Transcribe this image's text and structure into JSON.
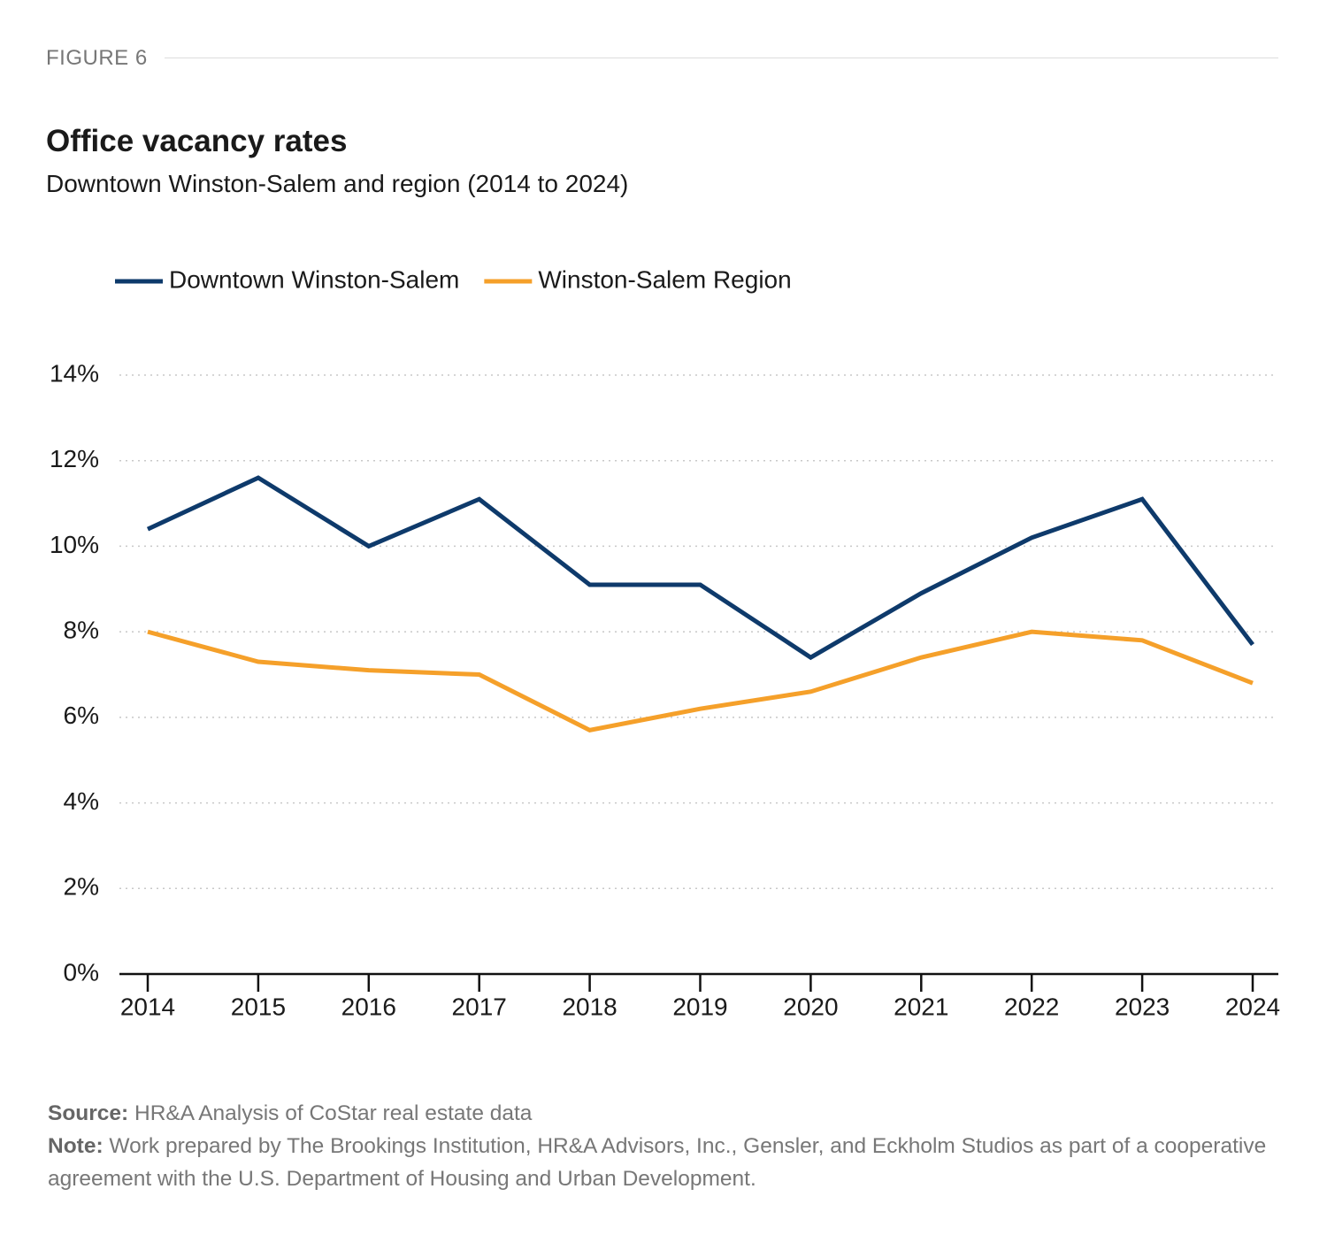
{
  "figure_label": "FIGURE 6",
  "chart_data": {
    "type": "line",
    "title": "Office vacancy rates",
    "subtitle": "Downtown Winston-Salem and region (2014 to 2024)",
    "categories": [
      "2014",
      "2015",
      "2016",
      "2017",
      "2018",
      "2019",
      "2020",
      "2021",
      "2022",
      "2023",
      "2024"
    ],
    "series": [
      {
        "name": "Downtown Winston-Salem",
        "color": "#0e3a6b",
        "values": [
          10.4,
          11.6,
          10.0,
          11.1,
          9.1,
          9.1,
          7.4,
          8.9,
          10.2,
          11.1,
          7.7
        ]
      },
      {
        "name": "Winston-Salem Region",
        "color": "#f5a02a",
        "values": [
          8.0,
          7.3,
          7.1,
          7.0,
          5.7,
          6.2,
          6.6,
          7.4,
          8.0,
          7.8,
          6.8
        ]
      }
    ],
    "ylim": [
      0,
      14
    ],
    "yticks": [
      {
        "value": 0,
        "label": "0%"
      },
      {
        "value": 2,
        "label": "2%"
      },
      {
        "value": 4,
        "label": "4%"
      },
      {
        "value": 6,
        "label": "6%"
      },
      {
        "value": 8,
        "label": "8%"
      },
      {
        "value": 10,
        "label": "10%"
      },
      {
        "value": 12,
        "label": "12%"
      },
      {
        "value": 14,
        "label": "14%"
      }
    ],
    "grid": true,
    "legend": "top-left"
  },
  "footer": {
    "source_label": "Source:",
    "source": "HR&A Analysis of CoStar real estate data",
    "note_label": "Note:",
    "note": "Work prepared by The Brookings Institution, HR&A Advisors, Inc., Gensler, and Eckholm Studios as part of a cooperative agreement with the U.S. Department of Housing and Urban Development."
  }
}
